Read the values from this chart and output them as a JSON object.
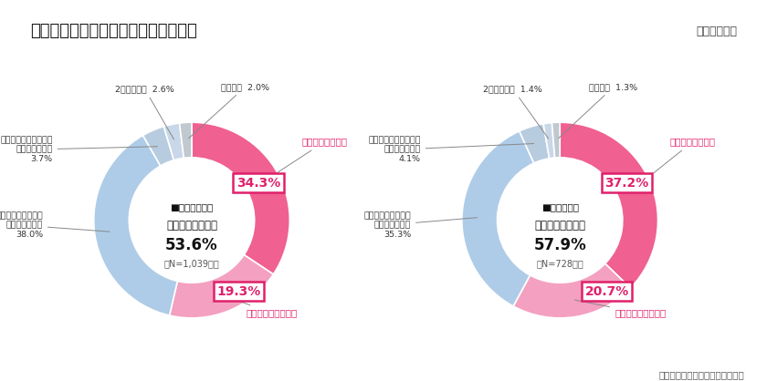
{
  "title": "１．普段使用する洗濯機のタイプは？",
  "subtitle": "（単一回答）",
  "footer": "ソフトブレーン・フィールド調べ",
  "background_color": "#ffffff",
  "title_bg_color": "#fffff0",
  "border_color": "#cccccc",
  "left": {
    "center_label1": "■専業主婦世帯",
    "center_label2": "全自動洗濯乾燥機",
    "center_value": "53.6%",
    "center_n": "（N=1,039名）",
    "segments": [
      {
        "name": "タテ型洗濯乾燥機",
        "value": 34.3,
        "color": "#F06090",
        "label_color": "#E0206A",
        "show_pct_box": true,
        "pct_text": "34.3%"
      },
      {
        "name": "ドラム式洗濯乾燥機",
        "value": 19.3,
        "color": "#F4A0C0",
        "label_color": "#E0206A",
        "show_pct_box": true,
        "pct_text": "19.3%"
      },
      {
        "name": "タテ型全自動洗濯機\n（乾燥機なし）",
        "value": 38.0,
        "color": "#AECCE8",
        "label_color": "#333333",
        "show_pct_box": false,
        "pct_text": "38.0%"
      },
      {
        "name": "ドラム式全自動洗濯機\n（乾燥機なし）",
        "value": 3.7,
        "color": "#B8CCE0",
        "label_color": "#333333",
        "show_pct_box": false,
        "pct_text": "3.7%"
      },
      {
        "name": "2槽式洗濯機",
        "value": 2.6,
        "color": "#C8D8E8",
        "label_color": "#333333",
        "show_pct_box": false,
        "pct_text": "2.6%"
      },
      {
        "name": "そのほか",
        "value": 2.0,
        "color": "#C0C8D0",
        "label_color": "#333333",
        "show_pct_box": false,
        "pct_text": "2.0%"
      }
    ]
  },
  "right": {
    "center_label1": "■共働き世帯",
    "center_label2": "全自動洗濯乾燥機",
    "center_value": "57.9%",
    "center_n": "（N=728名）",
    "segments": [
      {
        "name": "タテ型洗濯乾燥機",
        "value": 37.2,
        "color": "#F06090",
        "label_color": "#E0206A",
        "show_pct_box": true,
        "pct_text": "37.2%"
      },
      {
        "name": "ドラム式洗濯乾燥機",
        "value": 20.7,
        "color": "#F4A0C0",
        "label_color": "#E0206A",
        "show_pct_box": true,
        "pct_text": "20.7%"
      },
      {
        "name": "タテ型全自動洗濯機\n（乾燥機なし）",
        "value": 35.3,
        "color": "#AECCE8",
        "label_color": "#333333",
        "show_pct_box": false,
        "pct_text": "35.3%"
      },
      {
        "name": "ドラム式全自動洗濯機\n（乾燥機なし）",
        "value": 4.1,
        "color": "#B8CCE0",
        "label_color": "#333333",
        "show_pct_box": false,
        "pct_text": "4.1%"
      },
      {
        "name": "2槽式洗濯機",
        "value": 1.4,
        "color": "#C8D8E8",
        "label_color": "#333333",
        "show_pct_box": false,
        "pct_text": "1.4%"
      },
      {
        "name": "そのほか",
        "value": 1.3,
        "color": "#C0C8D0",
        "label_color": "#333333",
        "show_pct_box": false,
        "pct_text": "1.3%"
      }
    ]
  }
}
